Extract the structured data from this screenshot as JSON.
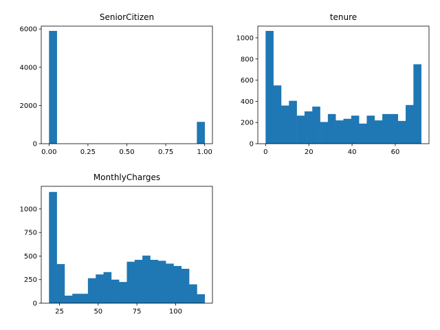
{
  "chart_data": [
    {
      "type": "bar",
      "title": "SeniorCitizen",
      "xlim": [
        -0.05,
        1.05
      ],
      "ylim": [
        0,
        6150
      ],
      "xticks": [
        0.0,
        0.25,
        0.5,
        0.75,
        1.0
      ],
      "xtick_labels": [
        "0.00",
        "0.25",
        "0.50",
        "0.75",
        "1.00"
      ],
      "yticks": [
        0,
        2000,
        4000,
        6000
      ],
      "ytick_labels": [
        "0",
        "2000",
        "4000",
        "6000"
      ],
      "bin_edges": [
        0,
        0.05,
        0.95,
        1.0
      ],
      "counts": [
        5901,
        0,
        1142
      ],
      "color": "#1f77b4"
    },
    {
      "type": "bar",
      "title": "tenure",
      "xlim": [
        -3.6,
        75.6
      ],
      "ylim": [
        0,
        1110
      ],
      "xticks": [
        0,
        20,
        40,
        60
      ],
      "xtick_labels": [
        "0",
        "20",
        "40",
        "60"
      ],
      "yticks": [
        0,
        200,
        400,
        600,
        800,
        1000
      ],
      "ytick_labels": [
        "0",
        "200",
        "400",
        "600",
        "800",
        "1000"
      ],
      "bin_edges": [
        0,
        3.6,
        7.2,
        10.8,
        14.4,
        18,
        21.6,
        25.2,
        28.8,
        32.4,
        36,
        39.6,
        43.2,
        46.8,
        50.4,
        54,
        57.6,
        61.2,
        64.8,
        68.4,
        72
      ],
      "counts": [
        1065,
        550,
        360,
        405,
        265,
        305,
        350,
        205,
        280,
        220,
        235,
        265,
        190,
        265,
        220,
        280,
        280,
        215,
        365,
        750
      ],
      "color": "#1f77b4"
    },
    {
      "type": "bar",
      "title": "MonthlyCharges",
      "xlim": [
        13.25,
        123.75
      ],
      "ylim": [
        0,
        1240
      ],
      "xticks": [
        25,
        50,
        75,
        100
      ],
      "xtick_labels": [
        "25",
        "50",
        "75",
        "100"
      ],
      "yticks": [
        0,
        250,
        500,
        750,
        1000
      ],
      "ytick_labels": [
        "0",
        "250",
        "500",
        "750",
        "1000"
      ],
      "bin_edges": [
        18.25,
        23.275,
        28.3,
        33.325,
        38.35,
        43.375,
        48.4,
        53.425,
        58.45,
        63.475,
        68.5,
        73.525,
        78.55,
        83.575,
        88.6,
        93.625,
        98.65,
        103.675,
        108.7,
        113.725,
        118.75
      ],
      "counts": [
        1180,
        415,
        80,
        100,
        100,
        265,
        305,
        330,
        250,
        225,
        440,
        460,
        505,
        460,
        450,
        420,
        395,
        365,
        200,
        95
      ],
      "color": "#1f77b4"
    }
  ]
}
